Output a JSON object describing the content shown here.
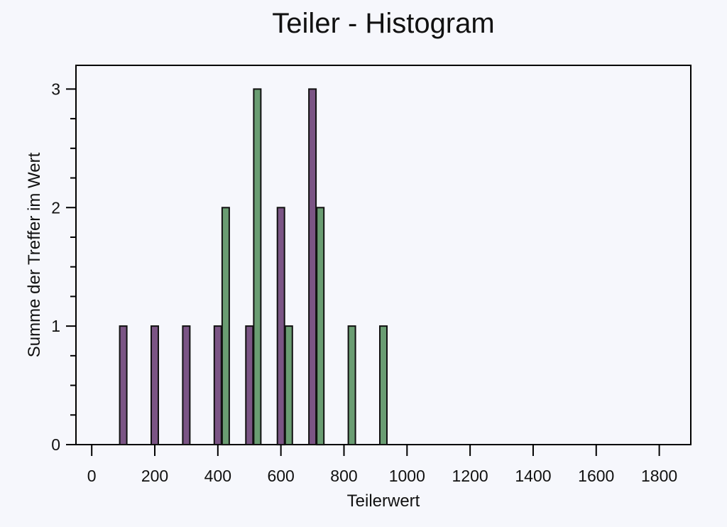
{
  "chart_data": {
    "type": "bar",
    "title": "Teiler - Histogram",
    "xlabel": "Teilerwert",
    "ylabel": "Summe der Treffer im Wert",
    "xlim": [
      -50,
      1900
    ],
    "ylim": [
      0,
      3.2
    ],
    "x_ticks": [
      0,
      200,
      400,
      600,
      800,
      1000,
      1200,
      1400,
      1600,
      1800
    ],
    "y_ticks": [
      0,
      1,
      2,
      3
    ],
    "y_minor_step": 0.25,
    "grid": false,
    "legend": "none",
    "series": [
      {
        "color": "#7b5585",
        "points": [
          {
            "x": 100,
            "y": 1
          },
          {
            "x": 200,
            "y": 1
          },
          {
            "x": 300,
            "y": 1
          },
          {
            "x": 400,
            "y": 1
          },
          {
            "x": 500,
            "y": 1
          },
          {
            "x": 600,
            "y": 2
          },
          {
            "x": 700,
            "y": 3
          }
        ]
      },
      {
        "color": "#6a9d72",
        "points": [
          {
            "x": 425,
            "y": 2
          },
          {
            "x": 525,
            "y": 3
          },
          {
            "x": 625,
            "y": 1
          },
          {
            "x": 725,
            "y": 2
          },
          {
            "x": 825,
            "y": 1
          },
          {
            "x": 925,
            "y": 1
          }
        ]
      }
    ]
  }
}
